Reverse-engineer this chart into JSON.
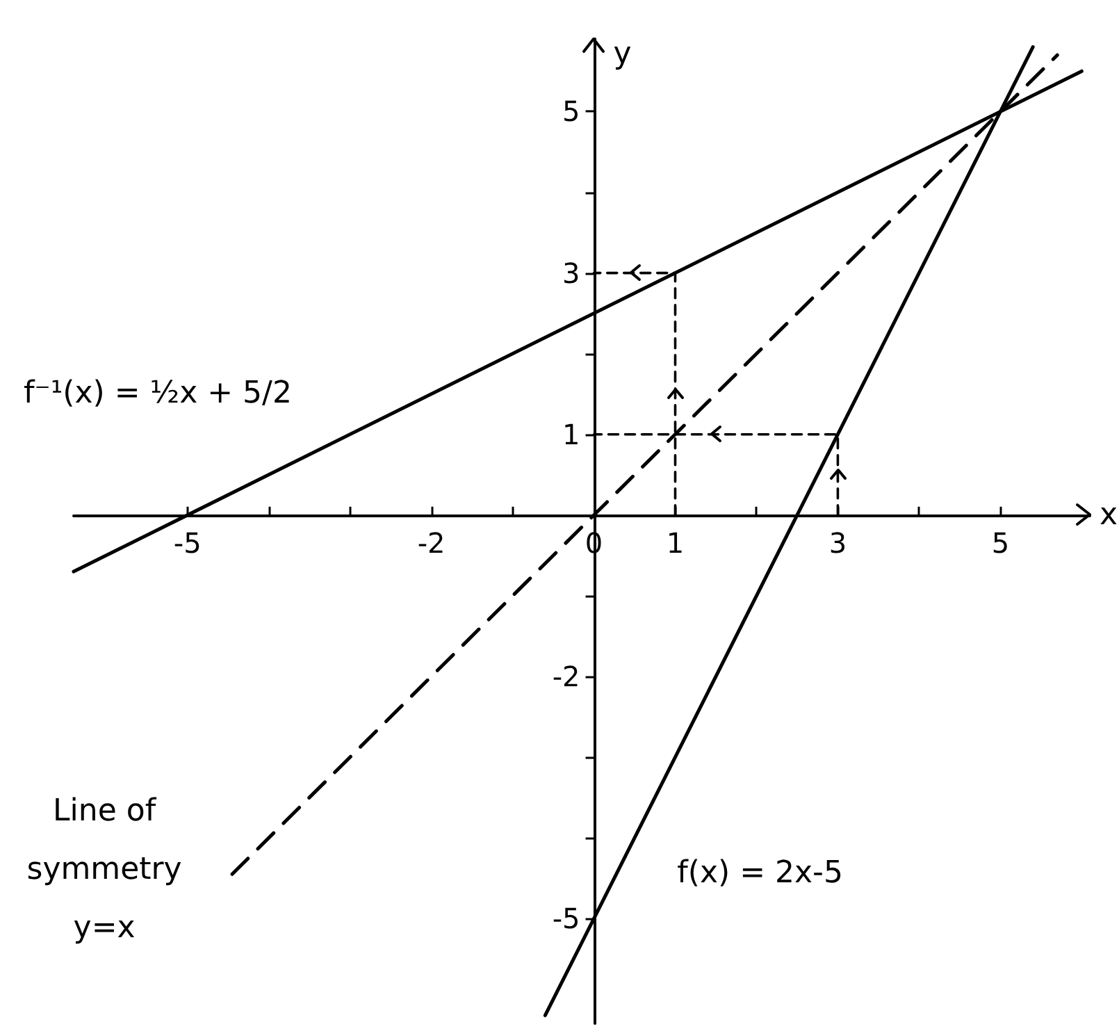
{
  "chart_data": {
    "type": "line",
    "xlabel": "x",
    "ylabel": "y",
    "xlim": [
      -6.4,
      6.1
    ],
    "ylim": [
      -6.3,
      5.9
    ],
    "xticks": [
      -5,
      {
        "value": -4,
        "label": null
      },
      {
        "value": -3,
        "label": null
      },
      -2,
      {
        "value": -1,
        "label": null
      },
      0,
      1,
      {
        "value": 2,
        "label": null
      },
      3,
      {
        "value": 4,
        "label": null
      },
      5
    ],
    "yticks": [
      -5,
      {
        "value": -4,
        "label": null
      },
      {
        "value": -3,
        "label": null
      },
      -2,
      {
        "value": -1,
        "label": null
      },
      1,
      {
        "value": 2,
        "label": null
      },
      3,
      {
        "value": 4,
        "label": null
      },
      5
    ],
    "series": [
      {
        "name": "f⁻¹(x) = ½x + 5/2",
        "color": "#000000",
        "x": [
          -6.4,
          6.0
        ],
        "values": [
          -0.7,
          5.5
        ],
        "line_style": "solid"
      },
      {
        "name": "f(x) = 2x-5",
        "color": "#000000",
        "x": [
          -0.6,
          5.4
        ],
        "values": [
          -6.2,
          5.8
        ],
        "line_style": "solid"
      },
      {
        "name": "Line of\nsymmetry\ny=x",
        "color": "#000000",
        "x": [
          -4.45,
          5.7
        ],
        "values": [
          -4.45,
          5.7
        ],
        "line_style": "dashed"
      },
      {
        "color": "#000000",
        "x": [
          3,
          3,
          0
        ],
        "values": [
          0,
          1,
          1
        ],
        "line_style": "dashed"
      },
      {
        "color": "#000000",
        "x": [
          1,
          1,
          0
        ],
        "values": [
          0,
          3,
          3
        ],
        "line_style": "dashed"
      }
    ],
    "marker": "none",
    "grid": false,
    "legend": false
  }
}
